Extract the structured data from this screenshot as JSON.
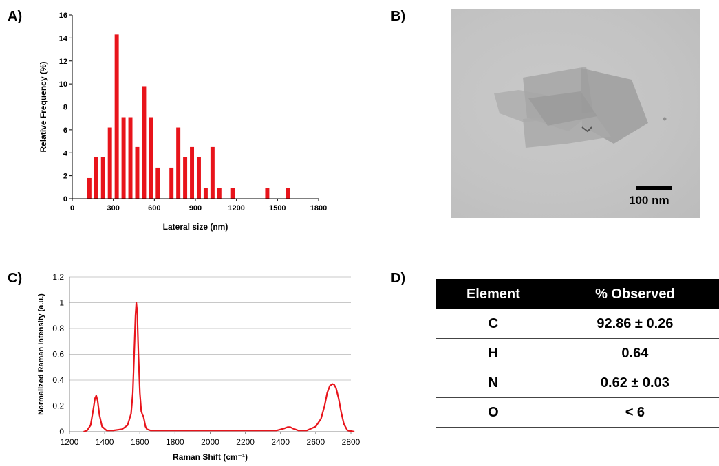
{
  "panels": {
    "a": "A)",
    "b": "B)",
    "c": "C)",
    "d": "D)"
  },
  "colors": {
    "series": "#e8141b",
    "axis": "#000000",
    "grid": "#c8c8c8"
  },
  "tem": {
    "scale_label": "100 nm"
  },
  "table": {
    "headers": [
      "Element",
      "% Observed"
    ],
    "rows": [
      [
        "C",
        "92.86 ± 0.26"
      ],
      [
        "H",
        "0.64"
      ],
      [
        "N",
        "0.62 ± 0.03"
      ],
      [
        "O",
        "< 6"
      ]
    ]
  },
  "chart_data": [
    {
      "type": "bar",
      "xlabel": "Lateral size (nm)",
      "ylabel": "Relative Frequency (%)",
      "xlim": [
        0,
        1800
      ],
      "ylim": [
        0,
        16
      ],
      "xticks": [
        0,
        300,
        600,
        900,
        1200,
        1500,
        1800
      ],
      "yticks": [
        0,
        2,
        4,
        6,
        8,
        10,
        12,
        14,
        16
      ],
      "grid": false,
      "bin_width": 30,
      "x": [
        125,
        175,
        225,
        275,
        325,
        375,
        425,
        475,
        525,
        575,
        625,
        725,
        775,
        825,
        875,
        925,
        975,
        1025,
        1075,
        1175,
        1425,
        1575
      ],
      "values": [
        1.8,
        3.6,
        3.6,
        6.2,
        14.3,
        7.1,
        7.1,
        4.5,
        9.8,
        7.1,
        2.7,
        2.7,
        6.2,
        3.6,
        4.5,
        3.6,
        0.9,
        4.5,
        0.9,
        0.9,
        0.9,
        0.9
      ]
    },
    {
      "type": "line",
      "xlabel": "Raman Shift (cm⁻¹)",
      "ylabel": "Normalized Raman Intensity (a.u.)",
      "xlim": [
        1200,
        2800
      ],
      "ylim": [
        0,
        1.2
      ],
      "xticks": [
        1200,
        1400,
        1600,
        1800,
        2000,
        2200,
        2400,
        2600,
        2800
      ],
      "yticks": [
        0,
        0.2,
        0.4,
        0.6,
        0.8,
        1,
        1.2
      ],
      "grid": true,
      "x": [
        1280,
        1300,
        1320,
        1335,
        1345,
        1352,
        1360,
        1370,
        1385,
        1410,
        1450,
        1500,
        1530,
        1550,
        1560,
        1568,
        1575,
        1580,
        1585,
        1592,
        1600,
        1608,
        1615,
        1620,
        1625,
        1632,
        1640,
        1660,
        1700,
        1800,
        2000,
        2200,
        2380,
        2420,
        2440,
        2455,
        2470,
        2500,
        2550,
        2600,
        2630,
        2650,
        2665,
        2680,
        2695,
        2705,
        2715,
        2730,
        2745,
        2760,
        2780,
        2820
      ],
      "values": [
        0.0,
        0.01,
        0.05,
        0.17,
        0.26,
        0.28,
        0.24,
        0.13,
        0.04,
        0.01,
        0.01,
        0.02,
        0.05,
        0.14,
        0.3,
        0.62,
        0.9,
        1.0,
        0.93,
        0.6,
        0.3,
        0.16,
        0.13,
        0.12,
        0.09,
        0.04,
        0.02,
        0.01,
        0.01,
        0.01,
        0.01,
        0.01,
        0.01,
        0.025,
        0.035,
        0.035,
        0.025,
        0.01,
        0.01,
        0.04,
        0.1,
        0.2,
        0.3,
        0.355,
        0.37,
        0.365,
        0.34,
        0.26,
        0.15,
        0.06,
        0.01,
        0.0
      ]
    }
  ]
}
